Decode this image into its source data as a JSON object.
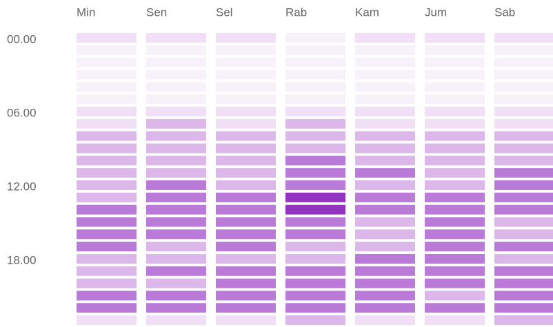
{
  "chart_data": {
    "type": "heatmap",
    "rows": [
      "00.00",
      null,
      null,
      null,
      null,
      null,
      "06.00",
      null,
      null,
      null,
      null,
      null,
      "12.00",
      null,
      null,
      null,
      null,
      null,
      "18.00",
      null,
      null,
      null,
      null,
      null
    ],
    "colors": [
      "#f7f1fa",
      "#f1dff6",
      "#dbb7ea",
      "#b97ad8",
      "#9234c0"
    ],
    "series": [
      {
        "name": "Min",
        "values": [
          1,
          0,
          0,
          0,
          0,
          0,
          1,
          1,
          2,
          2,
          2,
          2,
          2,
          2,
          3,
          3,
          3,
          3,
          2,
          2,
          2,
          3,
          3,
          1
        ]
      },
      {
        "name": "Sen",
        "values": [
          1,
          0,
          0,
          0,
          0,
          0,
          1,
          2,
          2,
          2,
          2,
          2,
          3,
          3,
          3,
          3,
          3,
          2,
          2,
          3,
          2,
          3,
          3,
          1
        ]
      },
      {
        "name": "Sel",
        "values": [
          1,
          0,
          0,
          0,
          0,
          0,
          1,
          1,
          2,
          2,
          2,
          2,
          2,
          3,
          3,
          3,
          3,
          3,
          2,
          3,
          3,
          3,
          3,
          1
        ]
      },
      {
        "name": "Rab",
        "values": [
          0,
          0,
          0,
          0,
          0,
          0,
          1,
          2,
          2,
          2,
          3,
          3,
          3,
          4,
          4,
          3,
          3,
          2,
          2,
          3,
          3,
          3,
          3,
          2
        ]
      },
      {
        "name": "Kam",
        "values": [
          1,
          0,
          0,
          0,
          0,
          0,
          1,
          1,
          2,
          2,
          2,
          3,
          2,
          3,
          3,
          2,
          2,
          2,
          3,
          3,
          3,
          3,
          3,
          1
        ]
      },
      {
        "name": "Jum",
        "values": [
          1,
          0,
          0,
          0,
          0,
          0,
          1,
          1,
          2,
          2,
          2,
          2,
          2,
          3,
          3,
          3,
          3,
          3,
          3,
          3,
          3,
          2,
          3,
          1
        ]
      },
      {
        "name": "Sab",
        "values": [
          1,
          0,
          0,
          0,
          0,
          0,
          1,
          1,
          2,
          2,
          2,
          3,
          3,
          3,
          3,
          2,
          2,
          3,
          2,
          3,
          3,
          3,
          3,
          2
        ]
      }
    ]
  }
}
